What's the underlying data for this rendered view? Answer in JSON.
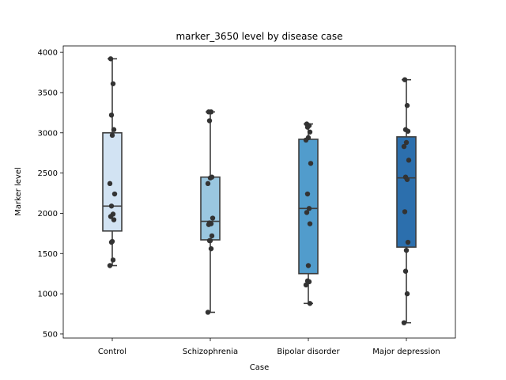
{
  "chart_data": {
    "type": "box",
    "title": "marker_3650 level by disease case",
    "xlabel": "Case",
    "ylabel": "Marker level",
    "categories": [
      "Control",
      "Schizophrenia",
      "Bipolar disorder",
      "Major depression"
    ],
    "ylim": [
      450,
      4080
    ],
    "yticks": [
      500,
      1000,
      1500,
      2000,
      2500,
      3000,
      3500,
      4000
    ],
    "grid": false,
    "legend": "none",
    "box_colors": [
      "#d2e3f3",
      "#9ac7e0",
      "#519ccc",
      "#2c6fad"
    ],
    "boxes": [
      {
        "category": "Control",
        "whisker_low": 1350,
        "q1": 1780,
        "median": 2090,
        "q3": 3000,
        "whisker_high": 3920
      },
      {
        "category": "Schizophrenia",
        "whisker_low": 770,
        "q1": 1670,
        "median": 1900,
        "q3": 2450,
        "whisker_high": 3260
      },
      {
        "category": "Bipolar disorder",
        "whisker_low": 880,
        "q1": 1250,
        "median": 2060,
        "q3": 2920,
        "whisker_high": 3110
      },
      {
        "category": "Major depression",
        "whisker_low": 640,
        "q1": 1580,
        "median": 2440,
        "q3": 2950,
        "whisker_high": 3660
      }
    ],
    "points": [
      {
        "category": "Control",
        "values": [
          3920,
          3610,
          3220,
          3040,
          2970,
          2370,
          2240,
          2090,
          1990,
          1960,
          1920,
          1650,
          1640,
          1420,
          1350
        ]
      },
      {
        "category": "Schizophrenia",
        "values": [
          3260,
          3260,
          3150,
          2450,
          2440,
          2370,
          1940,
          1880,
          1870,
          1860,
          1720,
          1660,
          1660,
          1560,
          770
        ]
      },
      {
        "category": "Bipolar disorder",
        "values": [
          3110,
          3090,
          3070,
          3010,
          2940,
          2910,
          2620,
          2240,
          2060,
          2010,
          1870,
          1350,
          1160,
          1150,
          1110,
          880
        ]
      },
      {
        "category": "Major depression",
        "values": [
          3660,
          3340,
          3040,
          3020,
          2880,
          2830,
          2660,
          2450,
          2420,
          2020,
          1640,
          1540,
          1280,
          1000,
          640
        ]
      }
    ]
  }
}
